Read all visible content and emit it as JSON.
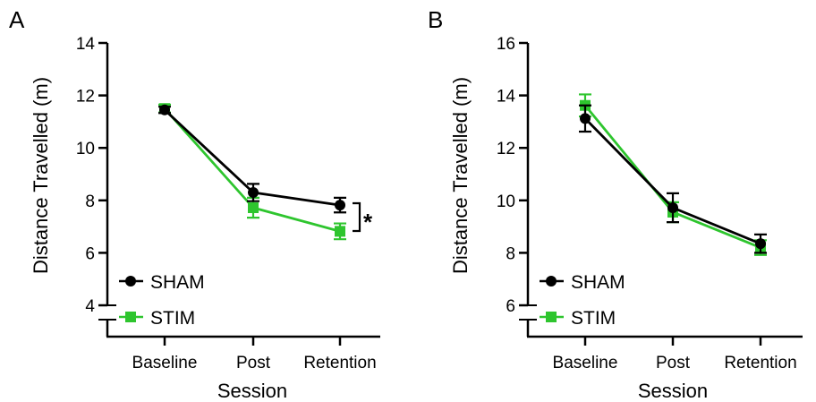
{
  "colors": {
    "sham": "#000000",
    "stim": "#2ec52e"
  },
  "chart_data": [
    {
      "panel": "A",
      "type": "line",
      "xlabel": "Session",
      "ylabel": "Distance Travelled (m)",
      "categories": [
        "Baseline",
        "Post",
        "Retention"
      ],
      "ylim": [
        4,
        14
      ],
      "yticks": [
        "4",
        "6",
        "8",
        "10",
        "12",
        "14"
      ],
      "axis_break": true,
      "series": [
        {
          "name": "SHAM",
          "marker": "circle",
          "values": [
            11.45,
            8.3,
            7.82
          ],
          "error": [
            0.12,
            0.33,
            0.28
          ]
        },
        {
          "name": "STIM",
          "marker": "square",
          "values": [
            11.5,
            7.72,
            6.82
          ],
          "error": [
            0.15,
            0.38,
            0.3
          ]
        }
      ],
      "annotation": {
        "text": "*",
        "between_series": [
          "SHAM",
          "STIM"
        ],
        "category": "Retention"
      },
      "legend": "bottom-left"
    },
    {
      "panel": "B",
      "type": "line",
      "xlabel": "Session",
      "ylabel": "Distance Travelled (m)",
      "categories": [
        "Baseline",
        "Post",
        "Retention"
      ],
      "ylim": [
        6,
        16
      ],
      "yticks": [
        "6",
        "8",
        "10",
        "12",
        "14",
        "16"
      ],
      "axis_break": true,
      "series": [
        {
          "name": "SHAM",
          "marker": "circle",
          "values": [
            13.12,
            9.72,
            8.35
          ],
          "error": [
            0.5,
            0.55,
            0.35
          ]
        },
        {
          "name": "STIM",
          "marker": "square",
          "values": [
            13.62,
            9.55,
            8.2
          ],
          "error": [
            0.42,
            0.38,
            0.28
          ]
        }
      ],
      "legend": "bottom-left"
    }
  ]
}
